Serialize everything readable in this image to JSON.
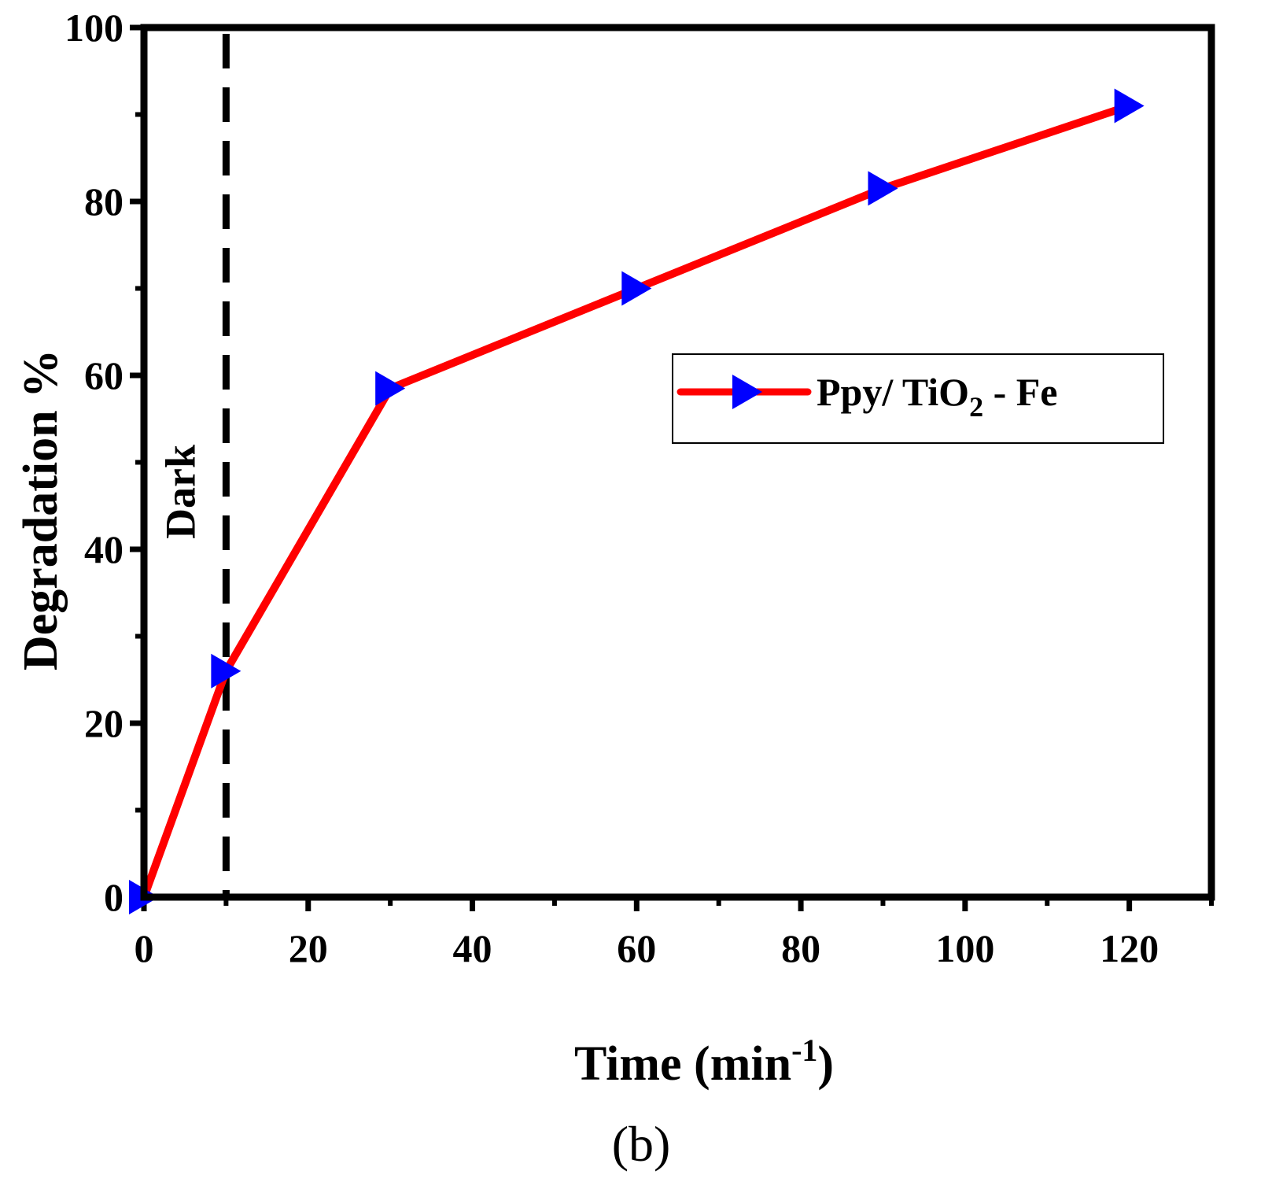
{
  "chart_data": {
    "type": "line",
    "xlabel": {
      "main": "Time (min",
      "sup": "-1",
      "end": ")"
    },
    "ylabel": "Degradation %",
    "xlim": [
      0,
      130
    ],
    "ylim": [
      0,
      100
    ],
    "xticks": [
      0,
      20,
      40,
      60,
      80,
      100,
      120
    ],
    "yticks": [
      0,
      20,
      40,
      60,
      80,
      100
    ],
    "x_minor_step": 10,
    "y_minor_step": 10,
    "grid": false,
    "legend_position": "upper-right",
    "series": [
      {
        "name": {
          "main": "Ppy/ TiO",
          "sub": "2",
          "end": " - Fe"
        },
        "line_color": "#ff0000",
        "marker_color": "#0000ff",
        "marker": "right-triangle",
        "x": [
          0,
          10,
          30,
          60,
          90,
          120
        ],
        "y": [
          0,
          26,
          58.5,
          70,
          81.5,
          91
        ]
      }
    ],
    "reference_line": {
      "x": 10,
      "style": "dashed",
      "color": "#000000",
      "label": "Dark"
    },
    "panel_label": "(b)"
  }
}
